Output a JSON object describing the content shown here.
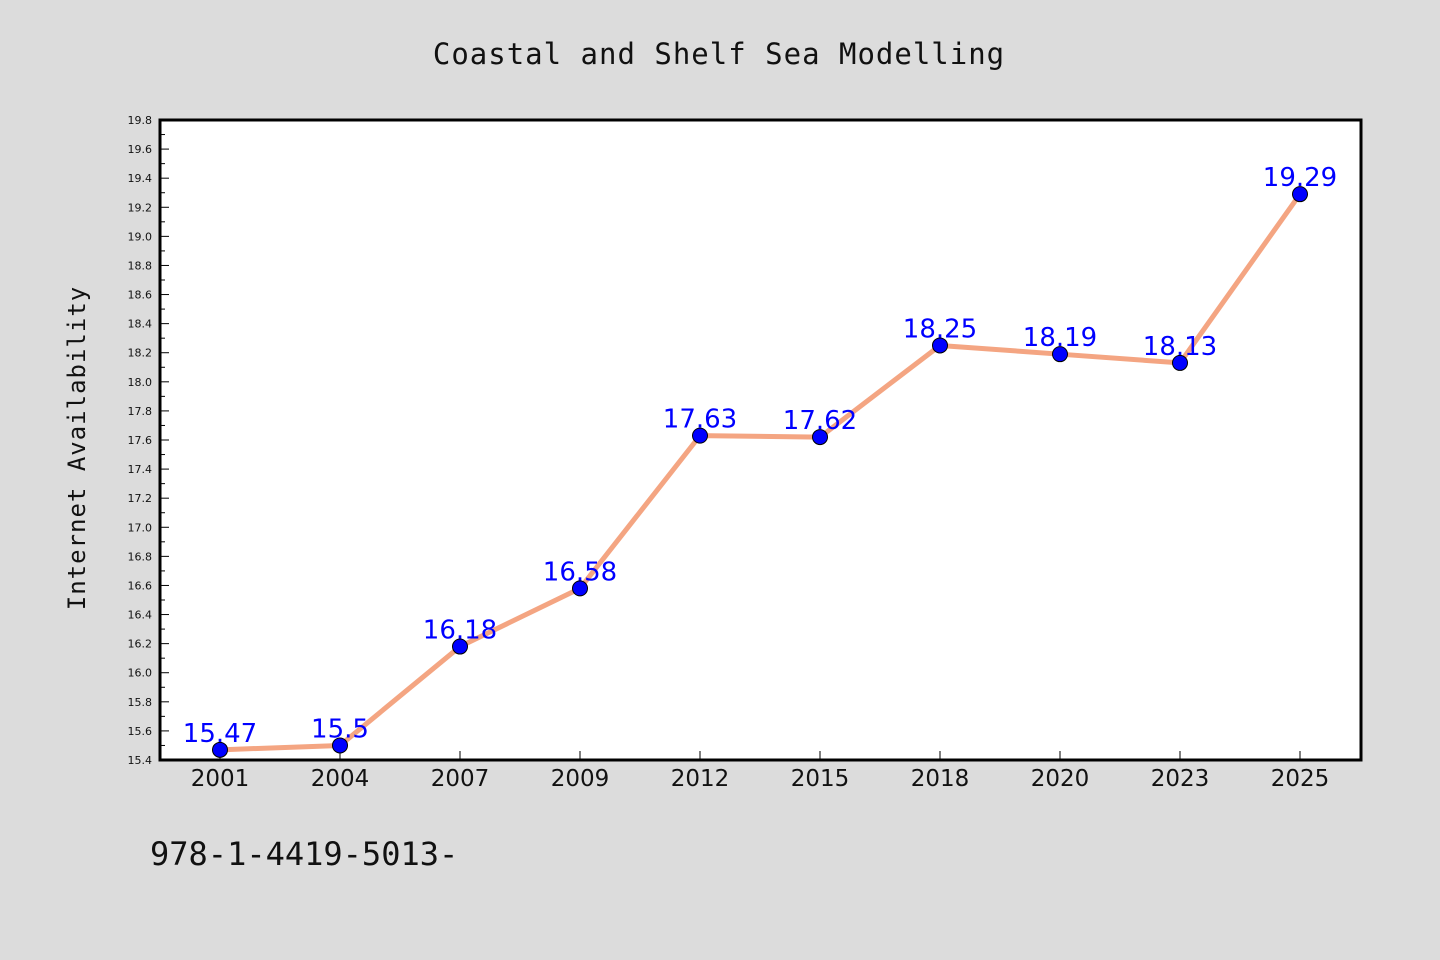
{
  "chart_data": {
    "type": "line",
    "title": "Coastal and Shelf Sea Modelling",
    "xlabel": "",
    "ylabel": "Internet Availability",
    "categories": [
      "2001",
      "2004",
      "2007",
      "2009",
      "2012",
      "2015",
      "2018",
      "2020",
      "2023",
      "2025"
    ],
    "series": [
      {
        "values": [
          15.47,
          15.5,
          16.18,
          16.58,
          17.63,
          17.62,
          18.25,
          18.19,
          18.13,
          19.29
        ],
        "data_labels": [
          "15.47",
          "15.5",
          "16.18",
          "16.58",
          "17.63",
          "17.62",
          "18.25",
          "18.19",
          "18.13",
          "19.29"
        ],
        "line_color": "#f4a582",
        "marker_color": "#0000ff"
      }
    ],
    "ylim": [
      15.4,
      19.8
    ],
    "yticks": [
      "15.4",
      "15.6",
      "15.8",
      "16.0",
      "16.2",
      "16.4",
      "16.6",
      "16.8",
      "17.0",
      "17.2",
      "17.4",
      "17.6",
      "17.8",
      "18.0",
      "18.2",
      "18.4",
      "18.6",
      "18.8",
      "19.0",
      "19.2",
      "19.4",
      "19.6",
      "19.8"
    ],
    "grid": false,
    "legend": "none"
  },
  "footer_text": "978-1-4419-5013-",
  "colors": {
    "background": "#dcdcdc",
    "plot_background": "#ffffff",
    "axis": "#000000"
  }
}
